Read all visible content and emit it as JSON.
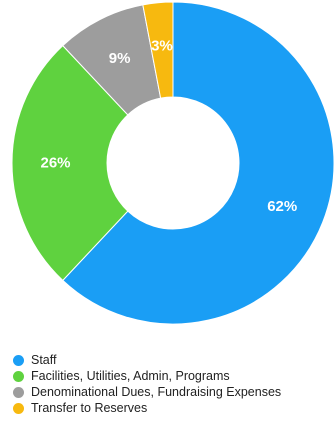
{
  "chart_data": {
    "type": "pie",
    "style": "donut",
    "title": "",
    "categories": [
      "Staff",
      "Facilities, Utilities, Admin, Programs",
      "Denominational Dues, Fundraising Expenses",
      "Transfer to Reserves"
    ],
    "values": [
      62,
      26,
      9,
      3
    ],
    "value_labels": [
      "62%",
      "26%",
      "9%",
      "3%"
    ],
    "colors": [
      "#1a9ef5",
      "#5fd23f",
      "#9d9d9d",
      "#f7b90f"
    ],
    "legend_position": "bottom-left"
  }
}
